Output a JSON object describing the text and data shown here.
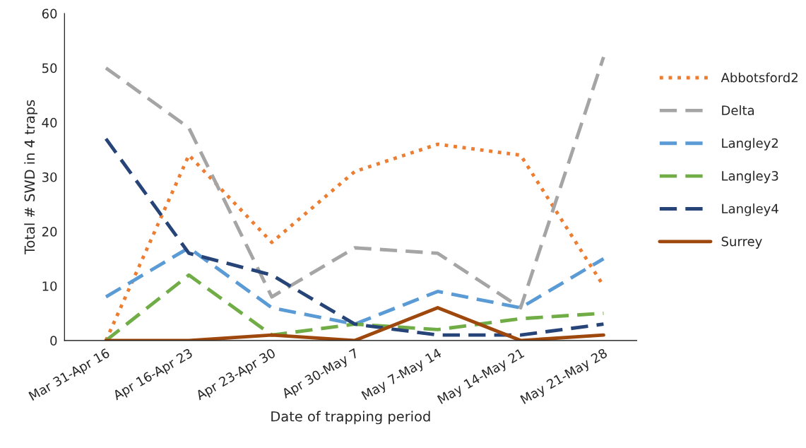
{
  "chart_data": {
    "type": "line",
    "xlabel": "Date of trapping period",
    "ylabel": "Total # SWD in 4 traps",
    "categories": [
      "Mar 31-Apr 16",
      "Apr 16-Apr 23",
      "Apr 23-Apr 30",
      "Apr 30-May 7",
      "May 7-May 14",
      "May 14-May 21",
      "May 21-May 28"
    ],
    "series": [
      {
        "name": "Abbotsford2",
        "color": "#ed7d31",
        "line_style": "dotted",
        "values": [
          0,
          34,
          18,
          31,
          36,
          34,
          10
        ]
      },
      {
        "name": "Delta",
        "color": "#a5a5a5",
        "line_style": "dashed",
        "values": [
          50,
          39,
          8,
          17,
          16,
          6,
          52
        ]
      },
      {
        "name": "Langley2",
        "color": "#5b9bd5",
        "line_style": "dashed",
        "values": [
          8,
          17,
          6,
          3,
          9,
          6,
          15
        ]
      },
      {
        "name": "Langley3",
        "color": "#70ad47",
        "line_style": "dashed",
        "values": [
          0,
          12,
          1,
          3,
          2,
          4,
          5
        ]
      },
      {
        "name": "Langley4",
        "color": "#264478",
        "line_style": "dashed",
        "values": [
          37,
          16,
          12,
          3,
          1,
          1,
          3
        ]
      },
      {
        "name": "Surrey",
        "color": "#9e480e",
        "line_style": "solid",
        "values": [
          0,
          0,
          1,
          0,
          6,
          0,
          1
        ]
      }
    ],
    "ylim": [
      0,
      60
    ],
    "yticks": [
      0,
      10,
      20,
      30,
      40,
      50,
      60
    ],
    "grid": false,
    "legend": "right",
    "marker": "none"
  }
}
